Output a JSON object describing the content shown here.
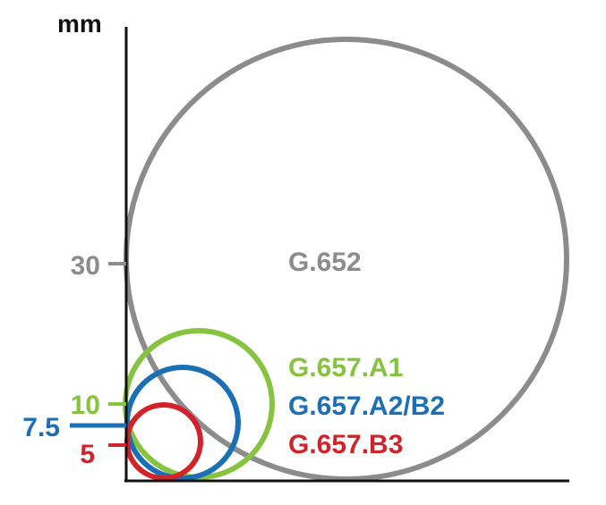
{
  "axis": {
    "unit_label": "mm"
  },
  "colors": {
    "gray": "#8c8c8c",
    "green": "#86c440",
    "blue": "#1a6fb5",
    "red": "#d2232a",
    "axis": "#111111"
  },
  "ticks": [
    {
      "value": 30,
      "label": "30",
      "color_key": "gray"
    },
    {
      "value": 10,
      "label": "10",
      "color_key": "green"
    },
    {
      "value": 7.5,
      "label": "7.5",
      "color_key": "blue"
    },
    {
      "value": 5,
      "label": "5",
      "color_key": "red"
    }
  ],
  "circles": [
    {
      "name": "G.652",
      "radius_mm": 30,
      "color_key": "gray"
    },
    {
      "name": "G.657.A1",
      "radius_mm": 10,
      "color_key": "green"
    },
    {
      "name": "G.657.A2/B2",
      "radius_mm": 7.5,
      "color_key": "blue"
    },
    {
      "name": "G.657.B3",
      "radius_mm": 5,
      "color_key": "red"
    }
  ]
}
